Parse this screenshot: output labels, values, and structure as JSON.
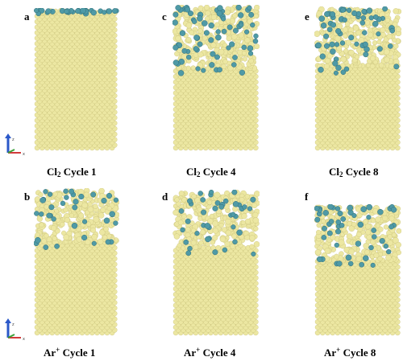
{
  "panels": [
    {
      "letter": "a",
      "caption": {
        "species": "Cl",
        "script": "2",
        "script_type": "sub",
        "rest": " Cycle 1"
      },
      "mixed_depth": 0.02,
      "dopant_count": 30,
      "seed": 11
    },
    {
      "letter": "c",
      "caption": {
        "species": "Cl",
        "script": "2",
        "script_type": "sub",
        "rest": " Cycle 4"
      },
      "mixed_depth": 0.42,
      "dopant_count": 70,
      "seed": 23
    },
    {
      "letter": "e",
      "caption": {
        "species": "Cl",
        "script": "2",
        "script_type": "sub",
        "rest": " Cycle 8"
      },
      "mixed_depth": 0.4,
      "dopant_count": 60,
      "seed": 37
    },
    {
      "letter": "b",
      "caption": {
        "species": "Ar",
        "script": "+",
        "script_type": "sup",
        "rest": " Cycle 1"
      },
      "mixed_depth": 0.35,
      "dopant_count": 35,
      "seed": 41
    },
    {
      "letter": "d",
      "caption": {
        "species": "Ar",
        "script": "+",
        "script_type": "sup",
        "rest": " Cycle 4"
      },
      "mixed_depth": 0.38,
      "dopant_count": 40,
      "seed": 53
    },
    {
      "letter": "f",
      "caption": {
        "species": "Ar",
        "script": "+",
        "script_type": "sup",
        "rest": " Cycle 8"
      },
      "mixed_depth": 0.42,
      "dopant_count": 50,
      "seed": 67
    }
  ],
  "colors": {
    "silicon": "#ece7a2",
    "silicon_stroke": "#c9c27a",
    "chlorine": "#4f9aa6",
    "chlorine_stroke": "#2f6f7a",
    "axis_z": "#2b58c9",
    "axis_x": "#d23a3a",
    "axis_y": "#3aa23a"
  },
  "axes_icons": [
    {
      "panel": "a"
    },
    {
      "panel": "b"
    }
  ]
}
